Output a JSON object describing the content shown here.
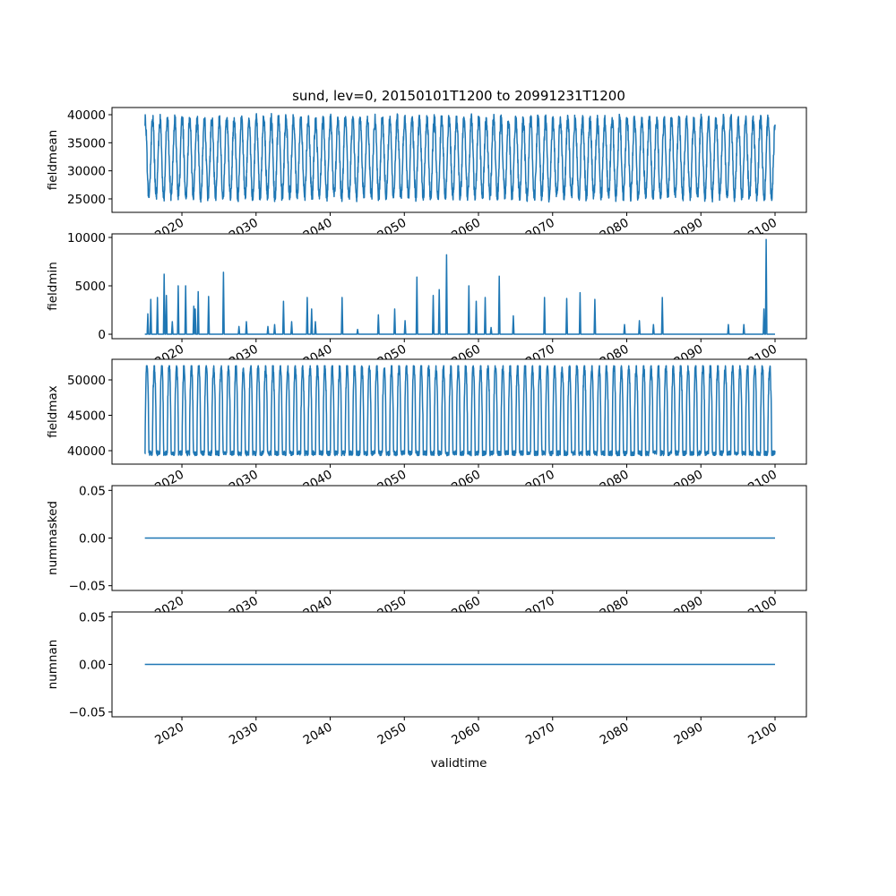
{
  "chart_data": {
    "type": "line",
    "title": "sund, lev=0, 20150101T1200 to 20991231T1200",
    "xlabel": "validtime",
    "xlim": [
      2010.57,
      2104.23
    ],
    "x_range": [
      2015.0,
      2100.0
    ],
    "xticks": [
      2020,
      2030,
      2040,
      2050,
      2060,
      2070,
      2080,
      2090,
      2100
    ],
    "xtick_labels": [
      "2020",
      "2030",
      "2040",
      "2050",
      "2060",
      "2070",
      "2080",
      "2090",
      "2100"
    ],
    "color": "#1f77b4",
    "panels": [
      {
        "ylabel": "fieldmean",
        "ylim": [
          22600,
          41280
        ],
        "yticks": [
          25000,
          30000,
          35000,
          40000
        ],
        "ytick_labels": [
          "25000",
          "30000",
          "35000",
          "40000"
        ],
        "pattern": "annual-cycle",
        "annual_min": 25300,
        "annual_max": 39300
      },
      {
        "ylabel": "fieldmin",
        "ylim": [
          -460,
          10370
        ],
        "yticks": [
          0,
          5000,
          10000
        ],
        "ytick_labels": [
          "0",
          "5000",
          "10000"
        ],
        "pattern": "spikes",
        "baseline": 0,
        "spikes": [
          [
            2015.4,
            2100
          ],
          [
            2015.8,
            3600
          ],
          [
            2016.7,
            3800
          ],
          [
            2017.6,
            6200
          ],
          [
            2017.9,
            4000
          ],
          [
            2018.7,
            1300
          ],
          [
            2019.5,
            5000
          ],
          [
            2020.5,
            5000
          ],
          [
            2021.6,
            2900
          ],
          [
            2021.8,
            2600
          ],
          [
            2022.2,
            4400
          ],
          [
            2023.6,
            3900
          ],
          [
            2025.6,
            6400
          ],
          [
            2027.7,
            800
          ],
          [
            2028.7,
            1300
          ],
          [
            2031.6,
            800
          ],
          [
            2032.5,
            1000
          ],
          [
            2033.7,
            3400
          ],
          [
            2034.8,
            1300
          ],
          [
            2036.9,
            3800
          ],
          [
            2037.5,
            2600
          ],
          [
            2038.0,
            1300
          ],
          [
            2041.6,
            3800
          ],
          [
            2043.7,
            500
          ],
          [
            2046.5,
            2000
          ],
          [
            2048.7,
            2600
          ],
          [
            2050.1,
            1400
          ],
          [
            2051.7,
            5900
          ],
          [
            2053.9,
            4000
          ],
          [
            2054.7,
            4600
          ],
          [
            2055.7,
            8200
          ],
          [
            2058.7,
            5000
          ],
          [
            2059.7,
            3400
          ],
          [
            2060.9,
            3800
          ],
          [
            2061.7,
            700
          ],
          [
            2062.8,
            6000
          ],
          [
            2064.7,
            1900
          ],
          [
            2068.9,
            3800
          ],
          [
            2071.9,
            3700
          ],
          [
            2073.7,
            4300
          ],
          [
            2075.7,
            3600
          ],
          [
            2079.7,
            1000
          ],
          [
            2081.7,
            1400
          ],
          [
            2083.6,
            1000
          ],
          [
            2084.8,
            3800
          ],
          [
            2093.7,
            1000
          ],
          [
            2095.8,
            1000
          ],
          [
            2098.5,
            2600
          ],
          [
            2098.8,
            9800
          ]
        ]
      },
      {
        "ylabel": "fieldmax",
        "ylim": [
          38100,
          52910
        ],
        "yticks": [
          40000,
          45000,
          50000
        ],
        "ytick_labels": [
          "40000",
          "45000",
          "50000"
        ],
        "pattern": "summer-peaks",
        "annual_min": 39500,
        "annual_max": 52000
      },
      {
        "ylabel": "nummasked",
        "ylim": [
          -0.055,
          0.055
        ],
        "yticks": [
          -0.05,
          0.0,
          0.05
        ],
        "ytick_labels": [
          "−0.05",
          "0.00",
          "0.05"
        ],
        "pattern": "constant",
        "value": 0
      },
      {
        "ylabel": "numnan",
        "ylim": [
          -0.055,
          0.055
        ],
        "yticks": [
          -0.05,
          0.0,
          0.05
        ],
        "ytick_labels": [
          "−0.05",
          "0.00",
          "0.05"
        ],
        "pattern": "constant",
        "value": 0
      }
    ]
  }
}
